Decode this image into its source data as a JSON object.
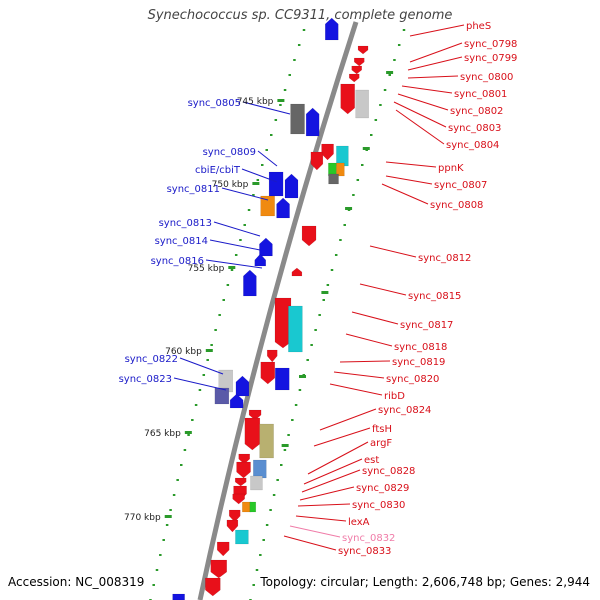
{
  "title": "Synechococcus sp. CC9311, complete genome",
  "footer": {
    "accession": "Accession: NC_008319",
    "topology": "Topology: circular; Length: 2,606,748 bp; Genes: 2,944"
  },
  "colors": {
    "backbone": "#8a8a8a",
    "left_label": "#1a1ac8",
    "right_label": "#d8101a",
    "right_label_faded": "#f07ca8",
    "tick_dots": "#2a9a2a",
    "kbp_label": "#222222"
  },
  "scale_labels": [
    "745 kbp",
    "750 kbp",
    "755 kbp",
    "760 kbp",
    "765 kbp",
    "770 kbp"
  ],
  "left_gene_labels": [
    "sync_0805",
    "sync_0809",
    "cbiE/cbiT",
    "sync_0811",
    "sync_0813",
    "sync_0814",
    "sync_0816",
    "sync_0822",
    "sync_0823"
  ],
  "right_gene_labels": [
    "pheS",
    "sync_0798",
    "sync_0799",
    "sync_0800",
    "sync_0801",
    "sync_0802",
    "sync_0803",
    "sync_0804",
    "ppnK",
    "sync_0807",
    "sync_0808",
    "sync_0812",
    "sync_0815",
    "sync_0817",
    "sync_0818",
    "sync_0819",
    "sync_0820",
    "ribD",
    "sync_0824",
    "ftsH",
    "argF",
    "est",
    "sync_0828",
    "sync_0829",
    "sync_0830",
    "lexA",
    "sync_0832",
    "sync_0833"
  ]
}
